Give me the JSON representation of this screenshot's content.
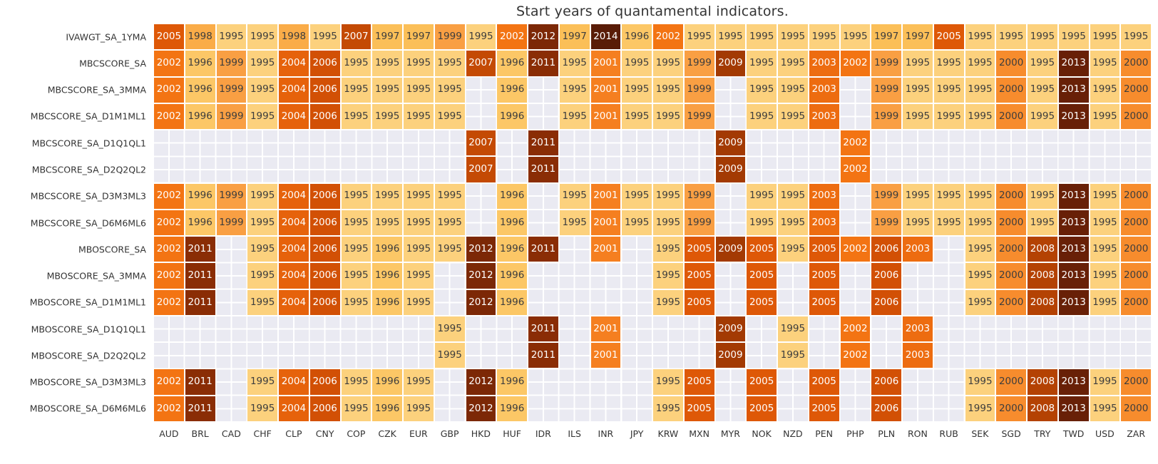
{
  "title": "Start years of quantamental indicators.",
  "chart_data": {
    "type": "heatmap",
    "title": "Start years of quantamental indicators.",
    "columns": [
      "AUD",
      "BRL",
      "CAD",
      "CHF",
      "CLP",
      "CNY",
      "COP",
      "CZK",
      "EUR",
      "GBP",
      "HKD",
      "HUF",
      "IDR",
      "ILS",
      "INR",
      "JPY",
      "KRW",
      "MXN",
      "MYR",
      "NOK",
      "NZD",
      "PEN",
      "PHP",
      "PLN",
      "RON",
      "RUB",
      "SEK",
      "SGD",
      "TRY",
      "TWD",
      "USD",
      "ZAR"
    ],
    "rows": [
      {
        "label": "IVAWGT_SA_1YMA",
        "values": [
          2005,
          1998,
          1995,
          1995,
          1998,
          1995,
          2007,
          1997,
          1997,
          1999,
          1995,
          2002,
          2012,
          1997,
          2014,
          1996,
          2002,
          1995,
          1995,
          1995,
          1995,
          1995,
          1995,
          1997,
          1997,
          2005,
          1995,
          1995,
          1995,
          1995,
          1995,
          1995
        ]
      },
      {
        "label": "MBCSCORE_SA",
        "values": [
          2002,
          1996,
          1999,
          1995,
          2004,
          2006,
          1995,
          1995,
          1995,
          1995,
          2007,
          1996,
          2011,
          1995,
          2001,
          1995,
          1995,
          1999,
          2009,
          1995,
          1995,
          2003,
          2002,
          1999,
          1995,
          1995,
          1995,
          2000,
          1995,
          2013,
          1995,
          2000
        ]
      },
      {
        "label": "MBCSCORE_SA_3MMA",
        "values": [
          2002,
          1996,
          1999,
          1995,
          2004,
          2006,
          1995,
          1995,
          1995,
          1995,
          null,
          1996,
          null,
          1995,
          2001,
          1995,
          1995,
          1999,
          null,
          1995,
          1995,
          2003,
          null,
          1999,
          1995,
          1995,
          1995,
          2000,
          1995,
          2013,
          1995,
          2000
        ]
      },
      {
        "label": "MBCSCORE_SA_D1M1ML1",
        "values": [
          2002,
          1996,
          1999,
          1995,
          2004,
          2006,
          1995,
          1995,
          1995,
          1995,
          null,
          1996,
          null,
          1995,
          2001,
          1995,
          1995,
          1999,
          null,
          1995,
          1995,
          2003,
          null,
          1999,
          1995,
          1995,
          1995,
          2000,
          1995,
          2013,
          1995,
          2000
        ]
      },
      {
        "label": "MBCSCORE_SA_D1Q1QL1",
        "values": [
          null,
          null,
          null,
          null,
          null,
          null,
          null,
          null,
          null,
          null,
          2007,
          null,
          2011,
          null,
          null,
          null,
          null,
          null,
          2009,
          null,
          null,
          null,
          2002,
          null,
          null,
          null,
          null,
          null,
          null,
          null,
          null,
          null
        ]
      },
      {
        "label": "MBCSCORE_SA_D2Q2QL2",
        "values": [
          null,
          null,
          null,
          null,
          null,
          null,
          null,
          null,
          null,
          null,
          2007,
          null,
          2011,
          null,
          null,
          null,
          null,
          null,
          2009,
          null,
          null,
          null,
          2002,
          null,
          null,
          null,
          null,
          null,
          null,
          null,
          null,
          null
        ]
      },
      {
        "label": "MBCSCORE_SA_D3M3ML3",
        "values": [
          2002,
          1996,
          1999,
          1995,
          2004,
          2006,
          1995,
          1995,
          1995,
          1995,
          null,
          1996,
          null,
          1995,
          2001,
          1995,
          1995,
          1999,
          null,
          1995,
          1995,
          2003,
          null,
          1999,
          1995,
          1995,
          1995,
          2000,
          1995,
          2013,
          1995,
          2000
        ]
      },
      {
        "label": "MBCSCORE_SA_D6M6ML6",
        "values": [
          2002,
          1996,
          1999,
          1995,
          2004,
          2006,
          1995,
          1995,
          1995,
          1995,
          null,
          1996,
          null,
          1995,
          2001,
          1995,
          1995,
          1999,
          null,
          1995,
          1995,
          2003,
          null,
          1999,
          1995,
          1995,
          1995,
          2000,
          1995,
          2013,
          1995,
          2000
        ]
      },
      {
        "label": "MBOSCORE_SA",
        "values": [
          2002,
          2011,
          null,
          1995,
          2004,
          2006,
          1995,
          1996,
          1995,
          1995,
          2012,
          1996,
          2011,
          null,
          2001,
          null,
          1995,
          2005,
          2009,
          2005,
          1995,
          2005,
          2002,
          2006,
          2003,
          null,
          1995,
          2000,
          2008,
          2013,
          1995,
          2000
        ]
      },
      {
        "label": "MBOSCORE_SA_3MMA",
        "values": [
          2002,
          2011,
          null,
          1995,
          2004,
          2006,
          1995,
          1996,
          1995,
          null,
          2012,
          1996,
          null,
          null,
          null,
          null,
          1995,
          2005,
          null,
          2005,
          null,
          2005,
          null,
          2006,
          null,
          null,
          1995,
          2000,
          2008,
          2013,
          1995,
          2000
        ]
      },
      {
        "label": "MBOSCORE_SA_D1M1ML1",
        "values": [
          2002,
          2011,
          null,
          1995,
          2004,
          2006,
          1995,
          1996,
          1995,
          null,
          2012,
          1996,
          null,
          null,
          null,
          null,
          1995,
          2005,
          null,
          2005,
          null,
          2005,
          null,
          2006,
          null,
          null,
          1995,
          2000,
          2008,
          2013,
          1995,
          2000
        ]
      },
      {
        "label": "MBOSCORE_SA_D1Q1QL1",
        "values": [
          null,
          null,
          null,
          null,
          null,
          null,
          null,
          null,
          null,
          1995,
          null,
          null,
          2011,
          null,
          2001,
          null,
          null,
          null,
          2009,
          null,
          1995,
          null,
          2002,
          null,
          2003,
          null,
          null,
          null,
          null,
          null,
          null,
          null
        ]
      },
      {
        "label": "MBOSCORE_SA_D2Q2QL2",
        "values": [
          null,
          null,
          null,
          null,
          null,
          null,
          null,
          null,
          null,
          1995,
          null,
          null,
          2011,
          null,
          2001,
          null,
          null,
          null,
          2009,
          null,
          1995,
          null,
          2002,
          null,
          2003,
          null,
          null,
          null,
          null,
          null,
          null,
          null
        ]
      },
      {
        "label": "MBOSCORE_SA_D3M3ML3",
        "values": [
          2002,
          2011,
          null,
          1995,
          2004,
          2006,
          1995,
          1996,
          1995,
          null,
          2012,
          1996,
          null,
          null,
          null,
          null,
          1995,
          2005,
          null,
          2005,
          null,
          2005,
          null,
          2006,
          null,
          null,
          1995,
          2000,
          2008,
          2013,
          1995,
          2000
        ]
      },
      {
        "label": "MBOSCORE_SA_D6M6ML6",
        "values": [
          2002,
          2011,
          null,
          1995,
          2004,
          2006,
          1995,
          1996,
          1995,
          null,
          2012,
          1996,
          null,
          null,
          null,
          null,
          1995,
          2005,
          null,
          2005,
          null,
          2005,
          null,
          2006,
          null,
          null,
          1995,
          2000,
          2008,
          2013,
          1995,
          2000
        ]
      }
    ],
    "colormap": {
      "1995": "#FCD17D",
      "1996": "#FCC766",
      "1997": "#FBBF58",
      "1998": "#FAAC48",
      "1999": "#F99F43",
      "2000": "#F78C2D",
      "2001": "#F57F20",
      "2002": "#F37413",
      "2003": "#ED6C10",
      "2004": "#E6620B",
      "2005": "#DE5807",
      "2006": "#D25005",
      "2007": "#C44A04",
      "2008": "#B44203",
      "2009": "#A33A03",
      "2011": "#8A2D05",
      "2012": "#7C2806",
      "2013": "#682007",
      "2014": "#591C07"
    },
    "blank_color": "#EAEAF2",
    "grid_color": "#FFFFFF",
    "dark_text_color": "#3D3D3D",
    "light_text_color": "#FFFFFF",
    "dark_text_max_year": 2000,
    "value_range": [
      1995,
      2014
    ],
    "legend": "none"
  }
}
